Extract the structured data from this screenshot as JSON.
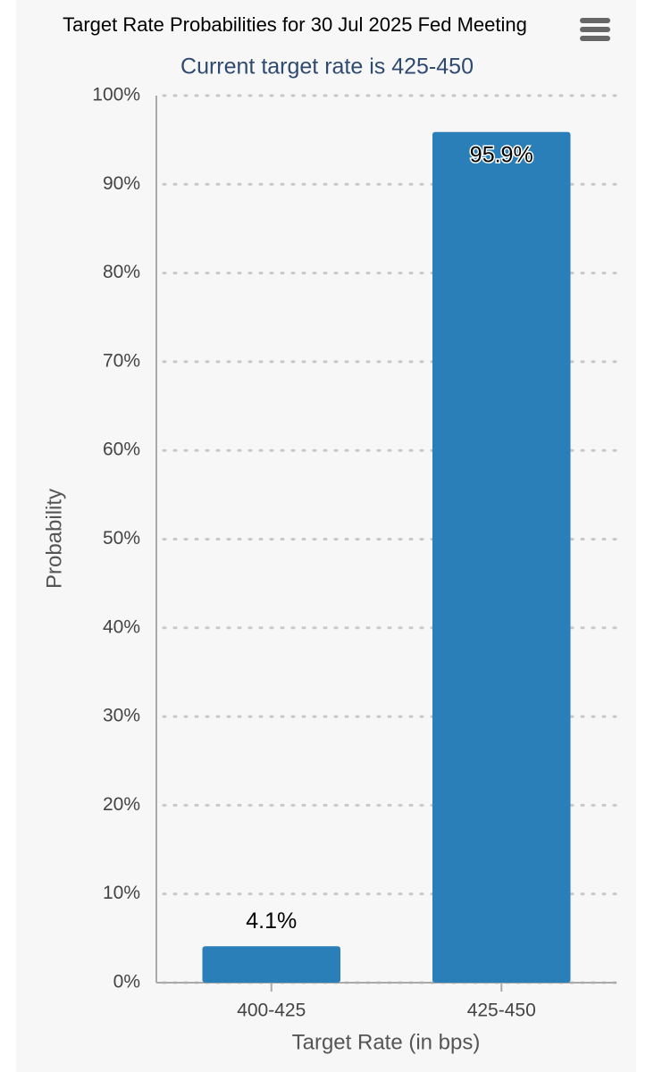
{
  "chart_data": {
    "type": "bar",
    "title": "Target Rate Probabilities for 30 Jul 2025 Fed Meeting",
    "subtitle": "Current target rate is 425-450",
    "x_label": "Target Rate (in bps)",
    "y_label": "Probability",
    "categories": [
      "400-425",
      "425-450"
    ],
    "values": [
      4.1,
      95.9
    ],
    "value_labels": [
      "4.1%",
      "95.9%"
    ],
    "color": "#2a7fb8",
    "ylim": [
      0,
      100
    ],
    "yticks": [
      {
        "value": 0,
        "label": "0%"
      },
      {
        "value": 10,
        "label": "10%"
      },
      {
        "value": 20,
        "label": "20%"
      },
      {
        "value": 30,
        "label": "30%"
      },
      {
        "value": 40,
        "label": "40%"
      },
      {
        "value": 50,
        "label": "50%"
      },
      {
        "value": 60,
        "label": "60%"
      },
      {
        "value": 70,
        "label": "70%"
      },
      {
        "value": 80,
        "label": "80%"
      },
      {
        "value": 90,
        "label": "90%"
      },
      {
        "value": 100,
        "label": "100%"
      }
    ],
    "grid": true
  }
}
